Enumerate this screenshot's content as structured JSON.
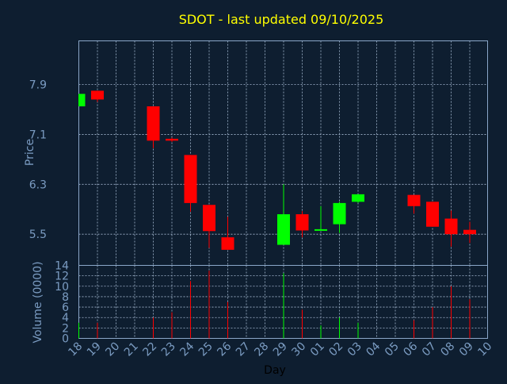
{
  "title": "SDOT - last updated 09/10/2025",
  "colors": {
    "background": "#0e1e30",
    "title": "#ffff00",
    "axis_text": "#7b9cc2",
    "up": "#00ff00",
    "down": "#ff0000",
    "grid": "#a6b9d2"
  },
  "chart_data": {
    "type": "candlestick",
    "title": "SDOT - last updated 09/10/2025",
    "xlabel": "Day",
    "ylabel": "Price",
    "volume_label": "Volume (0000)",
    "grid": true,
    "x_ticks": [
      "18",
      "19",
      "20",
      "21",
      "22",
      "23",
      "24",
      "25",
      "26",
      "27",
      "28",
      "29",
      "30",
      "01",
      "02",
      "03",
      "04",
      "05",
      "06",
      "07",
      "08",
      "09",
      "10"
    ],
    "price_ticks": [
      "5.5",
      "6.3",
      "7.1",
      "7.9"
    ],
    "price_tick_values": [
      5.5,
      6.3,
      7.1,
      7.9
    ],
    "price_ylim": [
      5.0,
      8.6
    ],
    "volume_ticks": [
      "0",
      "2",
      "4",
      "6",
      "8",
      "10",
      "12",
      "14"
    ],
    "volume_tick_values": [
      0,
      2,
      4,
      6,
      8,
      10,
      12,
      14
    ],
    "volume_ylim": [
      0,
      14
    ],
    "candles": [
      {
        "day": "18",
        "open": 7.55,
        "close": 7.75,
        "high": 7.75,
        "low": 7.55,
        "volume": 3
      },
      {
        "day": "19",
        "open": 7.8,
        "close": 7.66,
        "high": 7.8,
        "low": 7.62,
        "volume": 3
      },
      {
        "day": "22",
        "open": 7.55,
        "close": 7.0,
        "high": 7.55,
        "low": 6.88,
        "volume": 4
      },
      {
        "day": "23",
        "open": 7.03,
        "close": 7.0,
        "high": 7.05,
        "low": 6.98,
        "volume": 5
      },
      {
        "day": "24",
        "open": 6.77,
        "close": 6.0,
        "high": 6.77,
        "low": 5.86,
        "volume": 11
      },
      {
        "day": "25",
        "open": 5.97,
        "close": 5.55,
        "high": 5.97,
        "low": 5.28,
        "volume": 13
      },
      {
        "day": "26",
        "open": 5.45,
        "close": 5.25,
        "high": 5.78,
        "low": 5.25,
        "volume": 7
      },
      {
        "day": "29",
        "open": 5.33,
        "close": 5.82,
        "high": 6.3,
        "low": 5.33,
        "volume": 12.5
      },
      {
        "day": "30",
        "open": 5.82,
        "close": 5.56,
        "high": 5.87,
        "low": 5.45,
        "volume": 5.5
      },
      {
        "day": "01",
        "open": 5.56,
        "close": 5.58,
        "high": 5.95,
        "low": 5.56,
        "volume": 2.5
      },
      {
        "day": "02",
        "open": 5.66,
        "close": 6.0,
        "high": 6.02,
        "low": 5.52,
        "volume": 4
      },
      {
        "day": "03",
        "open": 6.02,
        "close": 6.14,
        "high": 6.14,
        "low": 6.0,
        "volume": 3
      },
      {
        "day": "06",
        "open": 6.13,
        "close": 5.95,
        "high": 6.13,
        "low": 5.83,
        "volume": 3.5
      },
      {
        "day": "07",
        "open": 6.02,
        "close": 5.62,
        "high": 6.02,
        "low": 5.62,
        "volume": 6
      },
      {
        "day": "08",
        "open": 5.75,
        "close": 5.5,
        "high": 5.88,
        "low": 5.3,
        "volume": 10
      },
      {
        "day": "09",
        "open": 5.57,
        "close": 5.5,
        "high": 5.7,
        "low": 5.36,
        "volume": 7.5
      }
    ]
  }
}
